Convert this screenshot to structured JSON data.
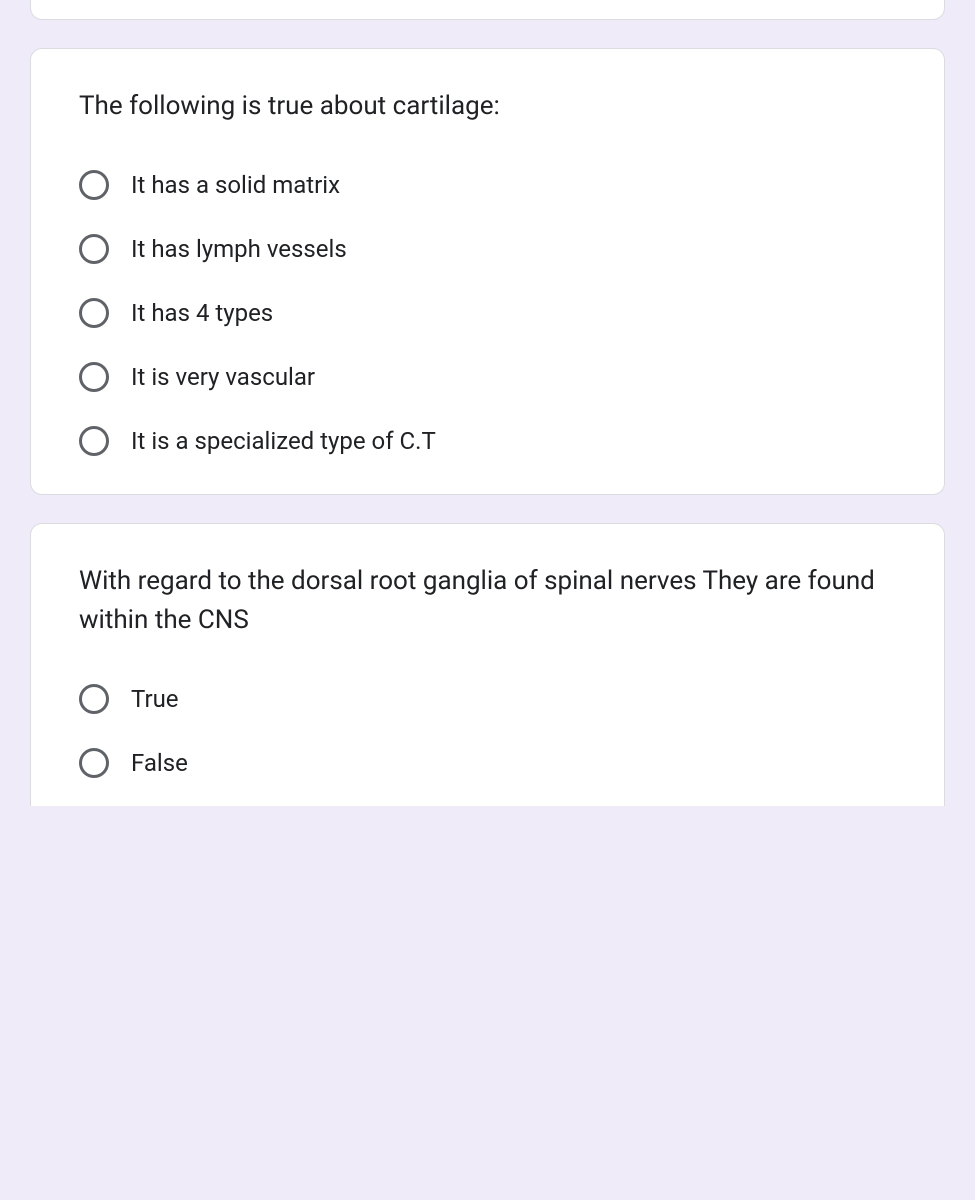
{
  "background_color": "#f0ebf8",
  "card_background": "#ffffff",
  "card_border": "#dadce0",
  "text_color": "#202124",
  "radio_border": "#5f6368",
  "questions": [
    {
      "prompt": "The following is true about cartilage:",
      "options": [
        "It has a solid matrix",
        "It has lymph vessels",
        "It has 4 types",
        "It is very vascular",
        "It is a specialized type of C.T"
      ]
    },
    {
      "prompt": "With regard to the dorsal root ganglia of spinal nerves They are found within the CNS",
      "options": [
        "True",
        "False"
      ]
    }
  ]
}
